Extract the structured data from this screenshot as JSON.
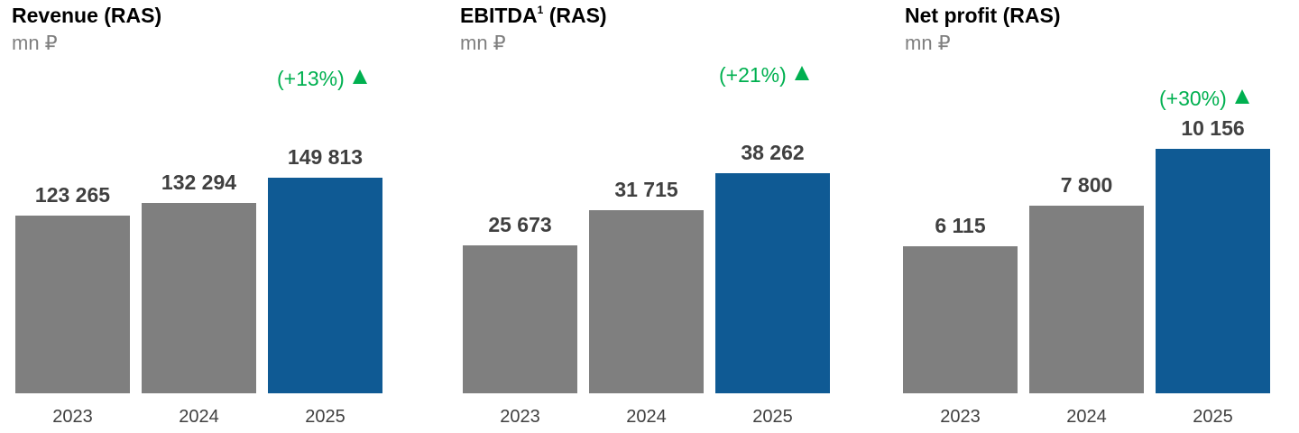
{
  "colors": {
    "prior_year_bar": "#7f7f7f",
    "current_year_bar": "#0f5a94",
    "growth_text": "#00b050",
    "value_text": "#404040",
    "unit_text": "#7f7f7f"
  },
  "growth_icon": "up-triangle-icon",
  "chart_data": [
    {
      "type": "bar",
      "title": "Revenue (RAS)",
      "title_sup": "",
      "unit": "mn ₽",
      "categories": [
        "2023",
        "2024",
        "2025"
      ],
      "values": [
        123265,
        132294,
        149813
      ],
      "value_labels": [
        "123 265",
        "132 294",
        "149 813"
      ],
      "growth_label": "(+13%)",
      "ylim": [
        0,
        160000
      ],
      "grid": false,
      "legend": "none"
    },
    {
      "type": "bar",
      "title": "EBITDA",
      "title_sup": "1",
      "title_suffix": " (RAS)",
      "unit": "mn ₽",
      "categories": [
        "2023",
        "2024",
        "2025"
      ],
      "values": [
        25673,
        31715,
        38262
      ],
      "value_labels": [
        "25 673",
        "31 715",
        "38 262"
      ],
      "growth_label": "(+21%)",
      "ylim": [
        0,
        40000
      ],
      "grid": false,
      "legend": "none"
    },
    {
      "type": "bar",
      "title": "Net profit (RAS)",
      "title_sup": "",
      "unit": "mn ₽",
      "categories": [
        "2023",
        "2024",
        "2025"
      ],
      "values": [
        6115,
        7800,
        10156
      ],
      "value_labels": [
        "6 115",
        "7 800",
        "10 156"
      ],
      "growth_label": "(+30%)",
      "ylim": [
        0,
        10000
      ],
      "grid": false,
      "legend": "none"
    }
  ]
}
